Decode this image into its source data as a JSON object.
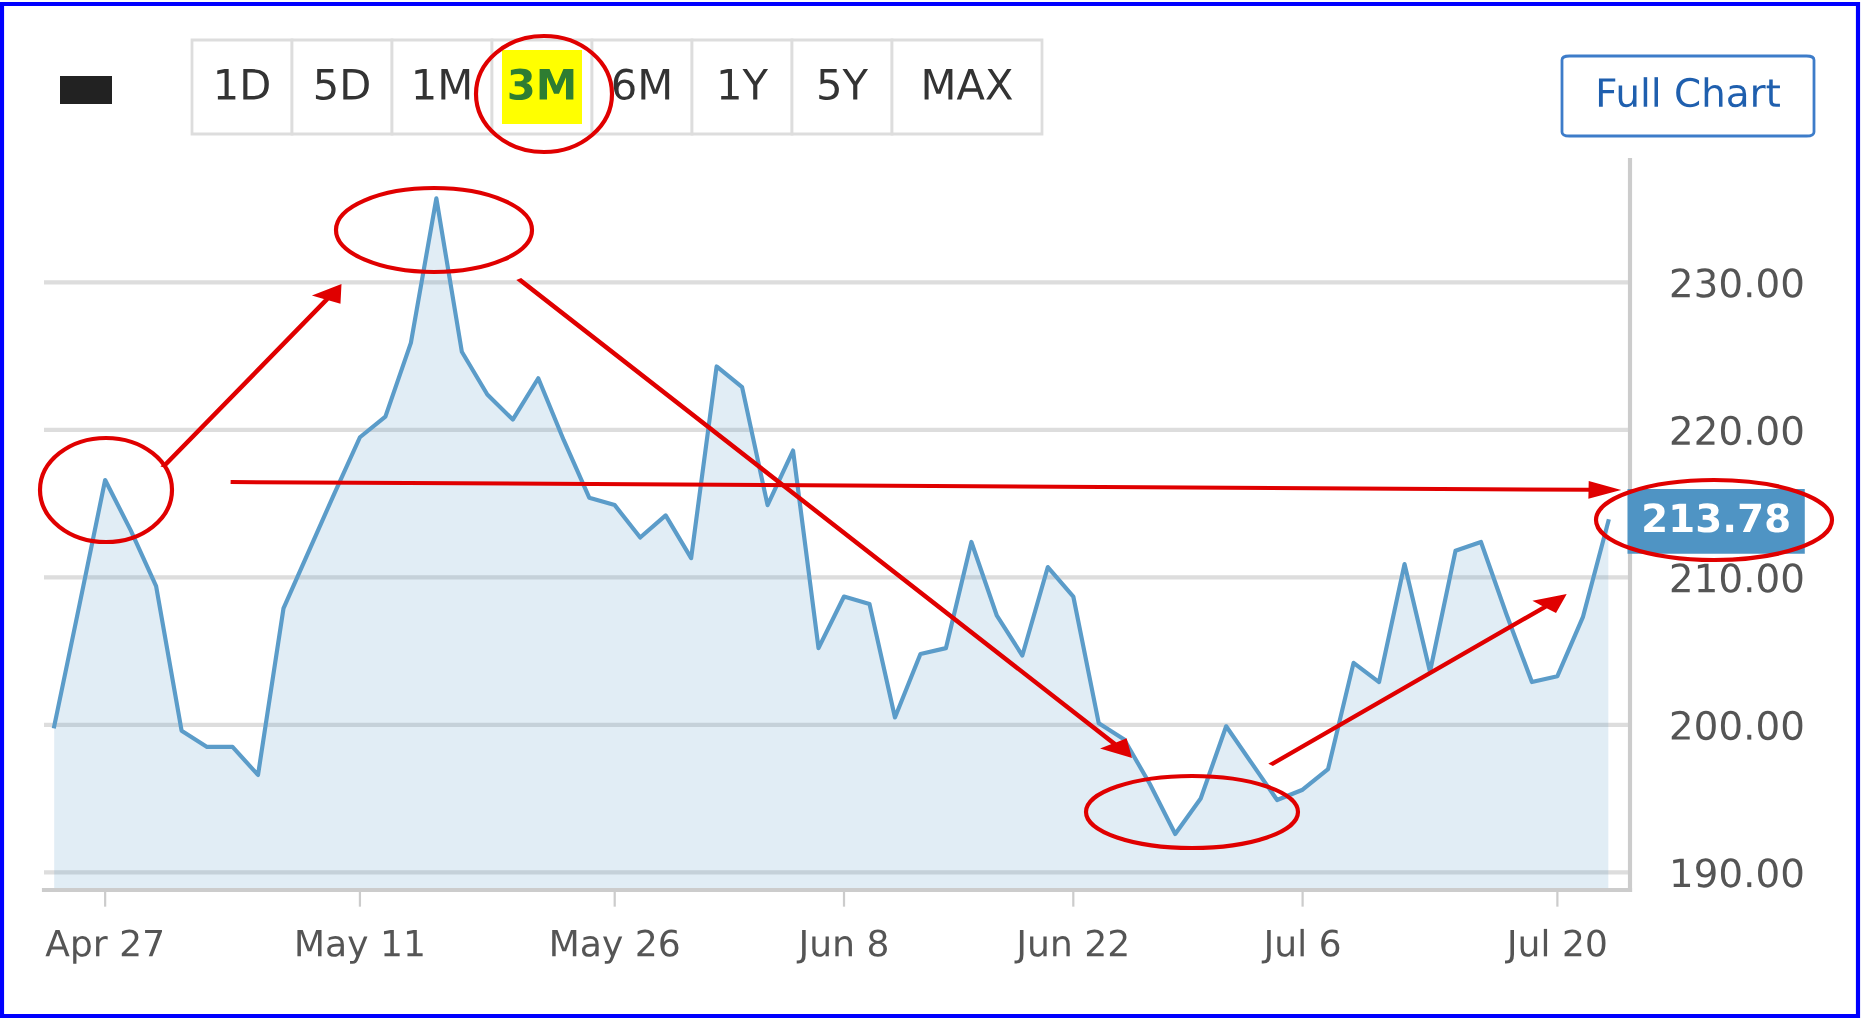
{
  "chart_data": {
    "type": "area",
    "categories": [
      null,
      null,
      "Apr 27",
      null,
      null,
      null,
      null,
      null,
      null,
      null,
      null,
      null,
      "May 11",
      null,
      null,
      null,
      null,
      null,
      null,
      null,
      null,
      null,
      "May 26",
      null,
      null,
      null,
      null,
      null,
      null,
      null,
      null,
      "Jun 8",
      null,
      null,
      null,
      null,
      null,
      null,
      null,
      null,
      "Jun 22",
      null,
      null,
      null,
      null,
      null,
      null,
      null,
      null,
      "Jul 6",
      null,
      null,
      null,
      null,
      null,
      null,
      null,
      null,
      null,
      "Jul 20",
      null,
      null
    ],
    "series": [
      {
        "color": "#5b9cc9",
        "values": [
          199.9,
          208.2,
          216.6,
          213.2,
          209.4,
          199.6,
          198.5,
          198.5,
          196.6,
          207.9,
          211.8,
          215.7,
          219.5,
          220.9,
          225.9,
          235.7,
          225.3,
          222.4,
          220.7,
          223.5,
          219.3,
          215.4,
          214.9,
          212.7,
          214.2,
          211.3,
          224.3,
          222.9,
          214.9,
          218.6,
          205.2,
          208.7,
          208.2,
          200.5,
          204.8,
          205.2,
          212.4,
          207.4,
          204.7,
          210.7,
          208.7,
          200.1,
          199.0,
          196.0,
          192.6,
          195.0,
          199.9,
          197.4,
          194.9,
          195.6,
          197.0,
          204.2,
          202.9,
          210.9,
          203.6,
          211.8,
          212.4,
          207.5,
          202.9,
          203.3,
          207.3,
          213.8
        ]
      }
    ],
    "ylim": [
      188.8,
      238.3
    ],
    "yticks": [
      {
        "value": 190,
        "label": "190.00"
      },
      {
        "value": 200,
        "label": "200.00"
      },
      {
        "value": 210,
        "label": "210.00"
      },
      {
        "value": 220,
        "label": "220.00"
      },
      {
        "value": 230,
        "label": "230.00"
      }
    ],
    "grid": "y",
    "annotations": [
      "213.78",
      "1D",
      "5D",
      "1M",
      "3M",
      "6M",
      "1Y",
      "5Y",
      "MAX",
      "Full Chart"
    ]
  }
}
